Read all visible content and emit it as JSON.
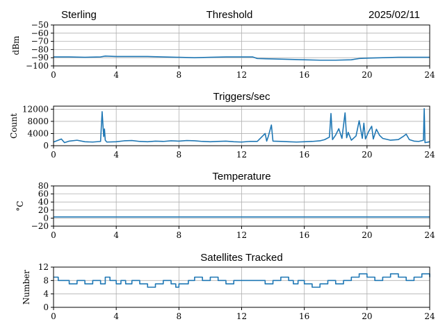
{
  "header": {
    "left": "Sterling",
    "center": "Threshold",
    "right": "2025/02/11"
  },
  "colors": {
    "line": "#1f77b4",
    "grid": "#b0b0b0",
    "axis": "#000000"
  },
  "chart_data": [
    {
      "type": "line",
      "title": "",
      "ylabel": "dBm",
      "xlim": [
        0,
        24
      ],
      "ylim": [
        -100,
        -50
      ],
      "xticks": [
        0,
        4,
        8,
        12,
        16,
        20,
        24
      ],
      "yticks": [
        -100,
        -90,
        -80,
        -70,
        -60,
        -50
      ],
      "ytick_labels": [
        "−100",
        "−90",
        "−80",
        "−70",
        "−60",
        "−50"
      ],
      "grid": true,
      "series": [
        {
          "x": [
            0,
            1,
            2,
            3,
            3.3,
            4,
            5,
            6,
            7,
            8,
            9,
            10,
            11,
            12,
            12.7,
            13,
            14,
            15,
            16,
            17,
            18,
            19,
            19.5,
            20,
            21,
            22,
            23,
            24
          ],
          "y": [
            -89,
            -89,
            -89.5,
            -89,
            -88,
            -88.5,
            -88.5,
            -88.5,
            -89,
            -89.5,
            -90,
            -89.5,
            -89,
            -89,
            -89,
            -91,
            -91.5,
            -92,
            -92.5,
            -93,
            -93,
            -92.5,
            -91,
            -90.5,
            -90,
            -89.5,
            -89.5,
            -89.5
          ]
        }
      ]
    },
    {
      "type": "line",
      "title": "Triggers/sec",
      "ylabel": "Count",
      "xlim": [
        0,
        24
      ],
      "ylim": [
        0,
        13000
      ],
      "xticks": [
        0,
        4,
        8,
        12,
        16,
        20,
        24
      ],
      "yticks": [
        0,
        4000,
        8000,
        12000
      ],
      "ytick_labels": [
        "0",
        "4000",
        "8000",
        "12000"
      ],
      "grid": true,
      "series": [
        {
          "x": [
            0,
            0.5,
            0.7,
            1,
            1.5,
            2,
            2.5,
            3,
            3.1,
            3.2,
            3.25,
            3.3,
            3.4,
            4,
            4.5,
            5,
            5.5,
            6,
            6.5,
            7,
            7.5,
            8,
            8.5,
            9,
            9.5,
            10,
            10.5,
            11,
            11.5,
            12,
            12.5,
            13,
            13.5,
            13.6,
            13.7,
            13.9,
            14,
            14.5,
            15,
            15.5,
            16,
            16.5,
            17,
            17.3,
            17.6,
            17.7,
            17.8,
            18,
            18.2,
            18.4,
            18.6,
            18.7,
            18.8,
            19,
            19.3,
            19.5,
            19.7,
            19.8,
            19.9,
            20.1,
            20.3,
            20.4,
            20.6,
            20.8,
            21,
            21.5,
            22,
            22.3,
            22.5,
            22.7,
            23,
            23.3,
            23.6,
            23.65,
            23.7,
            24
          ],
          "y": [
            1200,
            2200,
            1000,
            1500,
            1800,
            1300,
            1200,
            1400,
            11200,
            3000,
            5500,
            1800,
            1200,
            1300,
            1600,
            1700,
            1400,
            1300,
            1500,
            1400,
            1600,
            1500,
            1700,
            1600,
            1400,
            1300,
            1400,
            1500,
            1300,
            1200,
            1400,
            1400,
            4000,
            1500,
            3000,
            6800,
            1500,
            1400,
            1300,
            1200,
            1300,
            1400,
            1600,
            2000,
            2800,
            10600,
            2000,
            3500,
            5600,
            2400,
            10800,
            2600,
            4400,
            1800,
            3200,
            8200,
            2400,
            7400,
            2200,
            4600,
            6400,
            2200,
            5400,
            3400,
            2400,
            1800,
            2000,
            3000,
            3800,
            2000,
            1500,
            1400,
            1800,
            12200,
            1000,
            1300
          ]
        }
      ]
    },
    {
      "type": "line",
      "title": "Temperature",
      "ylabel": "°C",
      "xlim": [
        0,
        24
      ],
      "ylim": [
        -20,
        80
      ],
      "xticks": [
        0,
        4,
        8,
        12,
        16,
        20,
        24
      ],
      "yticks": [
        -20,
        0,
        20,
        40,
        60,
        80
      ],
      "ytick_labels": [
        "−20",
        "0",
        "20",
        "40",
        "60",
        "80"
      ],
      "grid": true,
      "series": [
        {
          "x": [
            0,
            24
          ],
          "y": [
            3,
            3
          ]
        }
      ]
    },
    {
      "type": "line",
      "title": "Satellites Tracked",
      "ylabel": "Number",
      "xlim": [
        0,
        24
      ],
      "ylim": [
        0,
        12
      ],
      "xticks": [
        0,
        4,
        8,
        12,
        16,
        20,
        24
      ],
      "yticks": [
        0,
        4,
        8,
        12
      ],
      "ytick_labels": [
        "0",
        "4",
        "8",
        "12"
      ],
      "grid": true,
      "step": true,
      "series": [
        {
          "x": [
            0,
            0.3,
            0.5,
            1,
            1.5,
            2,
            2.5,
            3,
            3.3,
            3.6,
            4,
            4.3,
            4.6,
            5,
            5.5,
            6,
            6.5,
            7,
            7.5,
            7.8,
            8,
            8.3,
            8.6,
            9,
            9.5,
            10,
            10.5,
            11,
            11.5,
            12,
            12.5,
            13,
            13.5,
            14,
            14.5,
            15,
            15.3,
            15.6,
            16,
            16.5,
            17,
            17.5,
            18,
            18.5,
            19,
            19.5,
            20,
            20.5,
            21,
            21.5,
            22,
            22.5,
            23,
            23.5,
            24
          ],
          "y": [
            9,
            8,
            8,
            7,
            8,
            7,
            8,
            7,
            9,
            8,
            7,
            8,
            7,
            8,
            7,
            6,
            7,
            8,
            7,
            6,
            7,
            7,
            8,
            9,
            8,
            9,
            8,
            7,
            8,
            8,
            8,
            8,
            7,
            8,
            9,
            8,
            7,
            8,
            7,
            6,
            7,
            8,
            7,
            8,
            9,
            10,
            9,
            8,
            9,
            10,
            9,
            8,
            9,
            10,
            9
          ]
        }
      ]
    }
  ]
}
